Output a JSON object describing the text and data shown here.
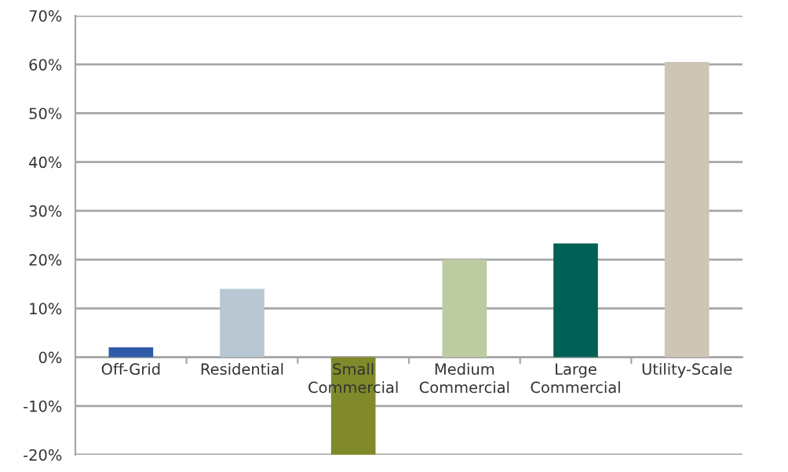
{
  "chart_data": {
    "type": "bar",
    "categories": [
      "Off-Grid",
      "Residential",
      "Small\nCommercial",
      "Medium\nCommercial",
      "Large\nCommercial",
      "Utility-Scale"
    ],
    "values": [
      0.02,
      0.14,
      -0.2,
      0.2,
      0.233,
      0.605
    ],
    "colors": [
      "#2e5aa8",
      "#b8c7d1",
      "#808a2a",
      "#bccca0",
      "#005f56",
      "#cdc5b6"
    ],
    "ylim": [
      -0.2,
      0.7
    ],
    "yticks": [
      {
        "value": -0.2,
        "label": "-20%"
      },
      {
        "value": -0.1,
        "label": "-10%"
      },
      {
        "value": 0,
        "label": "0%"
      },
      {
        "value": 0.1,
        "label": "10%"
      },
      {
        "value": 0.2,
        "label": "20%"
      },
      {
        "value": 0.3,
        "label": "30%"
      },
      {
        "value": 0.4,
        "label": "40%"
      },
      {
        "value": 0.5,
        "label": "50%"
      },
      {
        "value": 0.6,
        "label": "60%"
      },
      {
        "value": 0.7,
        "label": "70%"
      }
    ],
    "grid": "y",
    "legend": false
  }
}
